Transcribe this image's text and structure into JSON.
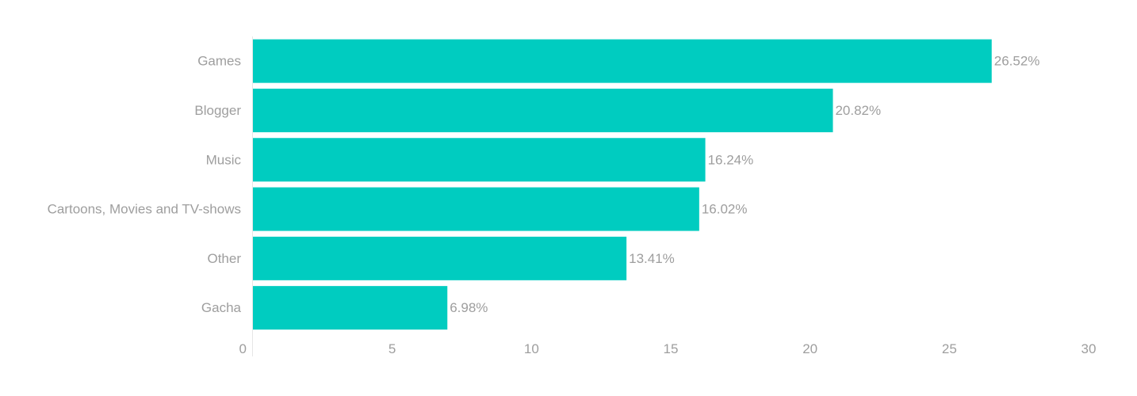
{
  "chart_data": {
    "type": "bar",
    "orientation": "horizontal",
    "categories": [
      "Games",
      "Blogger",
      "Music",
      "Cartoons, Movies and TV-shows",
      "Other",
      "Gacha"
    ],
    "values": [
      26.52,
      20.82,
      16.24,
      16.02,
      13.41,
      6.98
    ],
    "value_labels": [
      "26.52%",
      "20.82%",
      "16.24%",
      "16.02%",
      "13.41%",
      "6.98%"
    ],
    "xlim": [
      0,
      30
    ],
    "x_ticks": [
      0,
      5,
      10,
      15,
      20,
      25,
      30
    ],
    "title": "",
    "xlabel": "",
    "ylabel": "",
    "grid": false,
    "legend": "none",
    "colors": {
      "bar": "#00ccc0",
      "text": "#9e9e9e",
      "axis": "#e6e6e6"
    }
  }
}
